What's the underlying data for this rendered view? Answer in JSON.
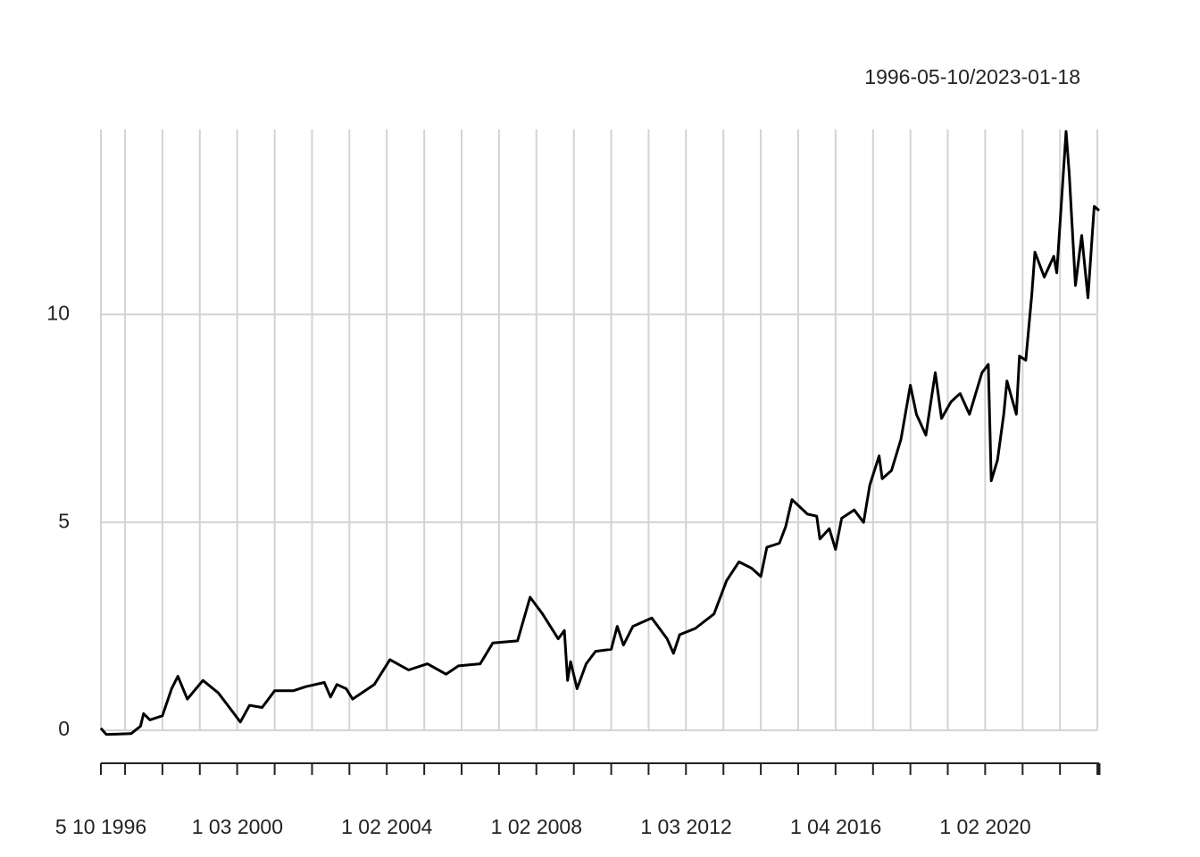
{
  "chart_data": {
    "type": "line",
    "title": "1996-05-10/2023-01-18",
    "x": [
      "1996-05-10",
      "1996-07",
      "1997-03",
      "1997-06",
      "1997-07",
      "1997-09",
      "1998-01",
      "1998-04",
      "1998-06",
      "1998-09",
      "1999-02",
      "1999-07",
      "1999-10",
      "2000-02",
      "2000-05",
      "2000-09",
      "2001-01",
      "2001-07",
      "2001-11",
      "2002-05",
      "2002-07",
      "2002-09",
      "2002-12",
      "2003-02",
      "2003-09",
      "2004-02",
      "2004-08",
      "2005-02",
      "2005-08",
      "2005-12",
      "2006-07",
      "2006-11",
      "2007-07",
      "2007-11",
      "2008-03",
      "2008-08",
      "2008-10",
      "2008-11",
      "2008-12",
      "2009-02",
      "2009-05",
      "2009-08",
      "2010-01",
      "2010-03",
      "2010-05",
      "2010-08",
      "2011-02",
      "2011-07",
      "2011-09",
      "2011-11",
      "2012-04",
      "2012-10",
      "2013-02",
      "2013-06",
      "2013-10",
      "2014-01",
      "2014-03",
      "2014-07",
      "2014-09",
      "2014-11",
      "2015-04",
      "2015-07",
      "2015-08",
      "2015-11",
      "2016-01",
      "2016-03",
      "2016-07",
      "2016-10",
      "2016-12",
      "2017-03",
      "2017-04",
      "2017-07",
      "2017-10",
      "2018-01",
      "2018-03",
      "2018-06",
      "2018-09",
      "2018-11",
      "2019-02",
      "2019-05",
      "2019-08",
      "2019-12",
      "2020-02",
      "2020-03",
      "2020-05",
      "2020-07",
      "2020-08",
      "2020-11",
      "2020-12",
      "2021-02",
      "2021-04",
      "2021-05",
      "2021-08",
      "2021-11",
      "2021-12",
      "2022-03",
      "2022-04",
      "2022-06",
      "2022-08",
      "2022-10",
      "2022-12",
      "2023-01-18"
    ],
    "series": [
      {
        "color": "#000000",
        "values": [
          0.05,
          -0.1,
          -0.08,
          0.1,
          0.4,
          0.25,
          0.35,
          1.0,
          1.3,
          0.75,
          1.2,
          0.9,
          0.6,
          0.2,
          0.6,
          0.55,
          0.95,
          0.95,
          1.05,
          1.15,
          0.8,
          1.1,
          1.0,
          0.75,
          1.1,
          1.7,
          1.45,
          1.6,
          1.35,
          1.55,
          1.6,
          2.1,
          2.15,
          3.2,
          2.8,
          2.2,
          2.4,
          1.2,
          1.65,
          1.0,
          1.6,
          1.9,
          1.95,
          2.5,
          2.05,
          2.5,
          2.7,
          2.2,
          1.85,
          2.3,
          2.45,
          2.8,
          3.6,
          4.05,
          3.9,
          3.7,
          4.4,
          4.5,
          4.9,
          5.55,
          5.2,
          5.15,
          4.6,
          4.85,
          4.35,
          5.1,
          5.3,
          5.0,
          5.9,
          6.6,
          6.05,
          6.25,
          7.0,
          8.3,
          7.6,
          7.1,
          8.6,
          7.5,
          7.9,
          8.1,
          7.6,
          8.6,
          8.8,
          6.0,
          6.5,
          7.6,
          8.4,
          7.6,
          9.0,
          8.9,
          10.5,
          11.5,
          10.9,
          11.4,
          11.0,
          14.4,
          13.4,
          10.7,
          11.9,
          10.4,
          12.6,
          12.5
        ]
      }
    ],
    "xlim": [
      "1996-05-10",
      "2023-01-18"
    ],
    "xticks": [
      {
        "value": "1996-05-10",
        "label": "5 10 1996"
      },
      {
        "value": "2000-01-03",
        "label": "1 03 2000"
      },
      {
        "value": "2004-01-02",
        "label": "1 02 2004"
      },
      {
        "value": "2008-01-02",
        "label": "1 02 2008"
      },
      {
        "value": "2012-01-03",
        "label": "1 03 2012"
      },
      {
        "value": "2016-01-04",
        "label": "1 04 2016"
      },
      {
        "value": "2020-01-02",
        "label": "1 02 2020"
      }
    ],
    "xgrid": [
      "1996-05-10",
      "1997-01",
      "1998-01",
      "1999-01",
      "2000-01",
      "2001-01",
      "2002-01",
      "2003-01",
      "2004-01",
      "2005-01",
      "2006-01",
      "2007-01",
      "2008-01",
      "2009-01",
      "2010-01",
      "2011-01",
      "2012-01",
      "2013-01",
      "2014-01",
      "2015-01",
      "2016-01",
      "2017-01",
      "2018-01",
      "2019-01",
      "2020-01",
      "2021-01",
      "2022-01",
      "2023-01"
    ],
    "ylim": [
      -0.17,
      14.45
    ],
    "yticks": [
      0,
      5,
      10
    ],
    "grid": true
  }
}
